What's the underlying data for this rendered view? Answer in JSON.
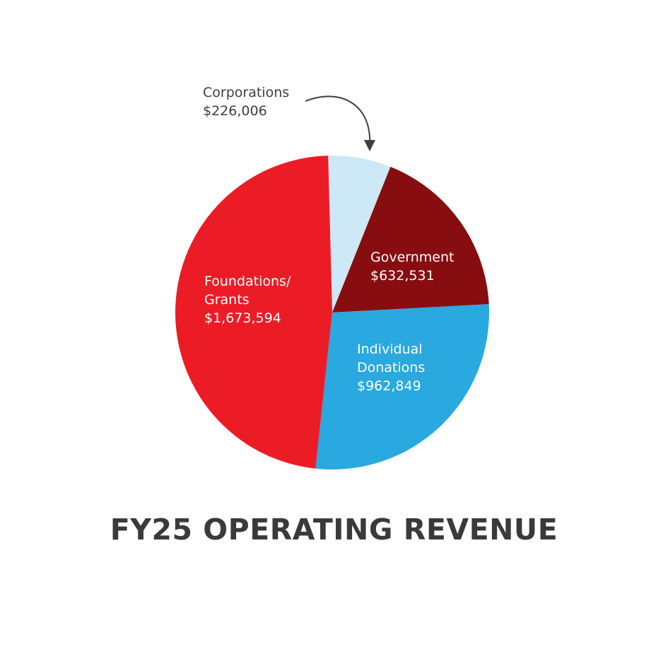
{
  "chart_data": {
    "type": "pie",
    "title": "FY25 OPERATING REVENUE",
    "slices": [
      {
        "label_lines": [
          "Corporations"
        ],
        "value": 226006,
        "value_label": "$226,006",
        "color": "#cde8f7",
        "label_position": "outside"
      },
      {
        "label_lines": [
          "Government"
        ],
        "value": 632531,
        "value_label": "$632,531",
        "color": "#870d10",
        "label_position": "inside"
      },
      {
        "label_lines": [
          "Individual",
          "Donations"
        ],
        "value": 962849,
        "value_label": "$962,849",
        "color": "#2aa8e0",
        "label_position": "inside"
      },
      {
        "label_lines": [
          "Foundations/",
          "Grants"
        ],
        "value": 1673594,
        "value_label": "$1,673,594",
        "color": "#ec1c27",
        "label_position": "inside"
      }
    ],
    "annotation_arrow_color": "#3f3f3f",
    "title_color": "#3a3a3a"
  }
}
